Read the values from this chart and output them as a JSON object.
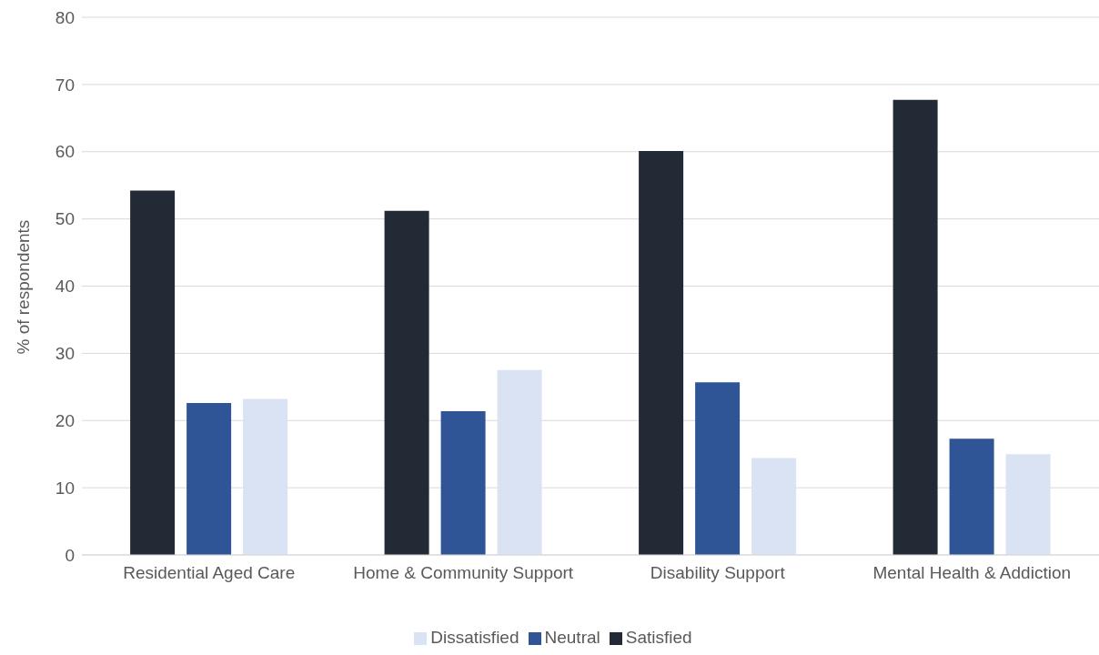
{
  "chart_data": {
    "type": "bar",
    "ylabel": "% of respondents",
    "categories": [
      "Residential Aged Care",
      "Home & Community Support",
      "Disability Support",
      "Mental Health & Addiction"
    ],
    "series": [
      {
        "name": "Satisfied",
        "color": "#222a35",
        "values": [
          54.2,
          51.2,
          60.1,
          67.7
        ]
      },
      {
        "name": "Neutral",
        "color": "#2f5597",
        "values": [
          22.6,
          21.4,
          25.7,
          17.3
        ]
      },
      {
        "name": "Dissatisfied",
        "color": "#dae3f3",
        "values": [
          23.2,
          27.5,
          14.4,
          15.0
        ]
      }
    ],
    "ylim": [
      0,
      80
    ],
    "yticks": [
      0,
      10,
      20,
      30,
      40,
      50,
      60,
      70,
      80
    ],
    "grid": "y",
    "legend": "bottom"
  }
}
